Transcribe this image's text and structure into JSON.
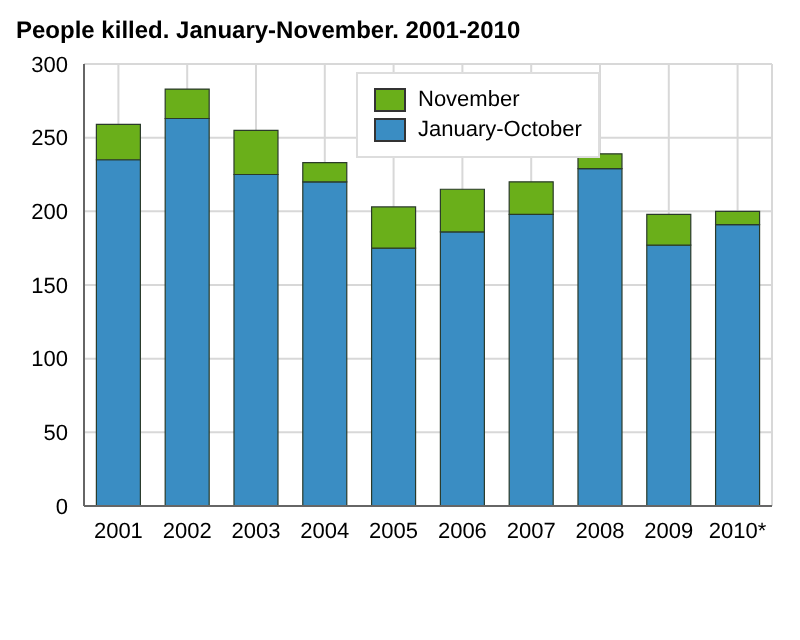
{
  "chart_data": {
    "type": "bar",
    "title": "People killed. January-November. 2001-2010",
    "categories": [
      "2001",
      "2002",
      "2003",
      "2004",
      "2005",
      "2006",
      "2007",
      "2008",
      "2009",
      "2010*"
    ],
    "stacked": true,
    "series": [
      {
        "name": "January-October",
        "color": "#3a8dc3",
        "values": [
          235,
          263,
          225,
          220,
          175,
          186,
          198,
          229,
          177,
          191
        ]
      },
      {
        "name": "November",
        "color": "#6aaf1a",
        "values": [
          24,
          20,
          30,
          13,
          28,
          29,
          22,
          10,
          21,
          9
        ]
      }
    ],
    "ylim": [
      0,
      300
    ],
    "yticks": [
      0,
      50,
      100,
      150,
      200,
      250,
      300
    ],
    "grid": true,
    "legend": "top right"
  }
}
